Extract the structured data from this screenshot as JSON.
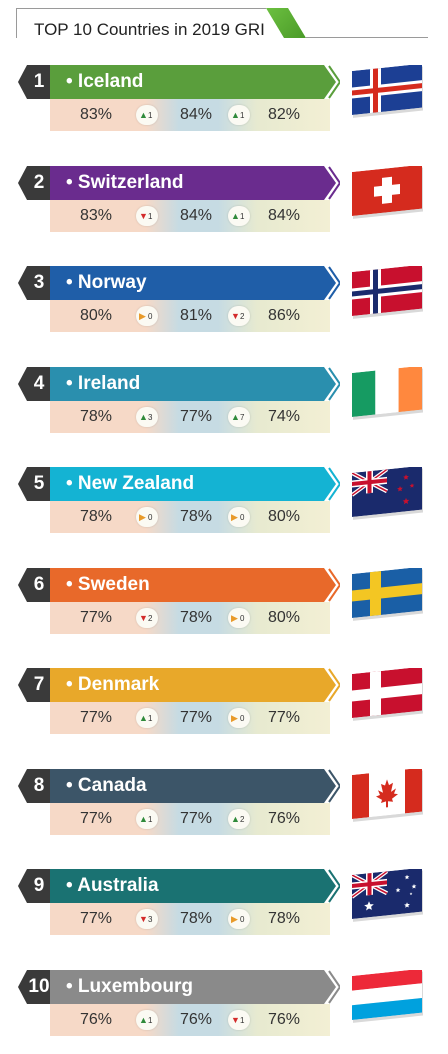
{
  "header": {
    "title": "TOP 10 Countries in 2019 GRI"
  },
  "rows": [
    {
      "rank": "1",
      "name": "• Iceland",
      "color": "#5a9e3c",
      "v2019": "83%",
      "chg1": {
        "dir": "up",
        "n": "1"
      },
      "v2018": "84%",
      "chg2": {
        "dir": "up",
        "n": "1"
      },
      "v2017": "82%",
      "flag": "iceland-flag"
    },
    {
      "rank": "2",
      "name": "• Switzerland",
      "color": "#6a2c8e",
      "v2019": "83%",
      "chg1": {
        "dir": "down",
        "n": "1"
      },
      "v2018": "84%",
      "chg2": {
        "dir": "up",
        "n": "1"
      },
      "v2017": "84%",
      "flag": "switzerland-flag"
    },
    {
      "rank": "3",
      "name": "• Norway",
      "color": "#1f5ea8",
      "v2019": "80%",
      "chg1": {
        "dir": "same",
        "n": "0"
      },
      "v2018": "81%",
      "chg2": {
        "dir": "down",
        "n": "2"
      },
      "v2017": "86%",
      "flag": "norway-flag"
    },
    {
      "rank": "4",
      "name": "• Ireland",
      "color": "#2a8fae",
      "v2019": "78%",
      "chg1": {
        "dir": "up",
        "n": "3"
      },
      "v2018": "77%",
      "chg2": {
        "dir": "up",
        "n": "7"
      },
      "v2017": "74%",
      "flag": "ireland-flag"
    },
    {
      "rank": "5",
      "name": "• New Zealand",
      "color": "#14b3d3",
      "v2019": "78%",
      "chg1": {
        "dir": "same",
        "n": "0"
      },
      "v2018": "78%",
      "chg2": {
        "dir": "same",
        "n": "0"
      },
      "v2017": "80%",
      "flag": "new-zealand-flag"
    },
    {
      "rank": "6",
      "name": "• Sweden",
      "color": "#e8692a",
      "v2019": "77%",
      "chg1": {
        "dir": "down",
        "n": "2"
      },
      "v2018": "78%",
      "chg2": {
        "dir": "same",
        "n": "0"
      },
      "v2017": "80%",
      "flag": "sweden-flag"
    },
    {
      "rank": "7",
      "name": "• Denmark",
      "color": "#e8a82a",
      "v2019": "77%",
      "chg1": {
        "dir": "up",
        "n": "1"
      },
      "v2018": "77%",
      "chg2": {
        "dir": "same",
        "n": "0"
      },
      "v2017": "77%",
      "flag": "denmark-flag"
    },
    {
      "rank": "8",
      "name": "• Canada",
      "color": "#3c5568",
      "v2019": "77%",
      "chg1": {
        "dir": "up",
        "n": "1"
      },
      "v2018": "77%",
      "chg2": {
        "dir": "up",
        "n": "2"
      },
      "v2017": "76%",
      "flag": "canada-flag"
    },
    {
      "rank": "9",
      "name": "• Australia",
      "color": "#1a7272",
      "v2019": "77%",
      "chg1": {
        "dir": "down",
        "n": "3"
      },
      "v2018": "78%",
      "chg2": {
        "dir": "same",
        "n": "0"
      },
      "v2017": "78%",
      "flag": "australia-flag"
    },
    {
      "rank": "10",
      "name": "• Luxembourg",
      "color": "#8a8a8a",
      "v2019": "76%",
      "chg1": {
        "dir": "up",
        "n": "1"
      },
      "v2018": "76%",
      "chg2": {
        "dir": "down",
        "n": "1"
      },
      "v2017": "76%",
      "flag": "luxembourg-flag"
    }
  ],
  "colors": {
    "up": "#2f8a3a",
    "down": "#d32b2b",
    "same": "#e89a2a",
    "badge": "#3a3a3a"
  }
}
